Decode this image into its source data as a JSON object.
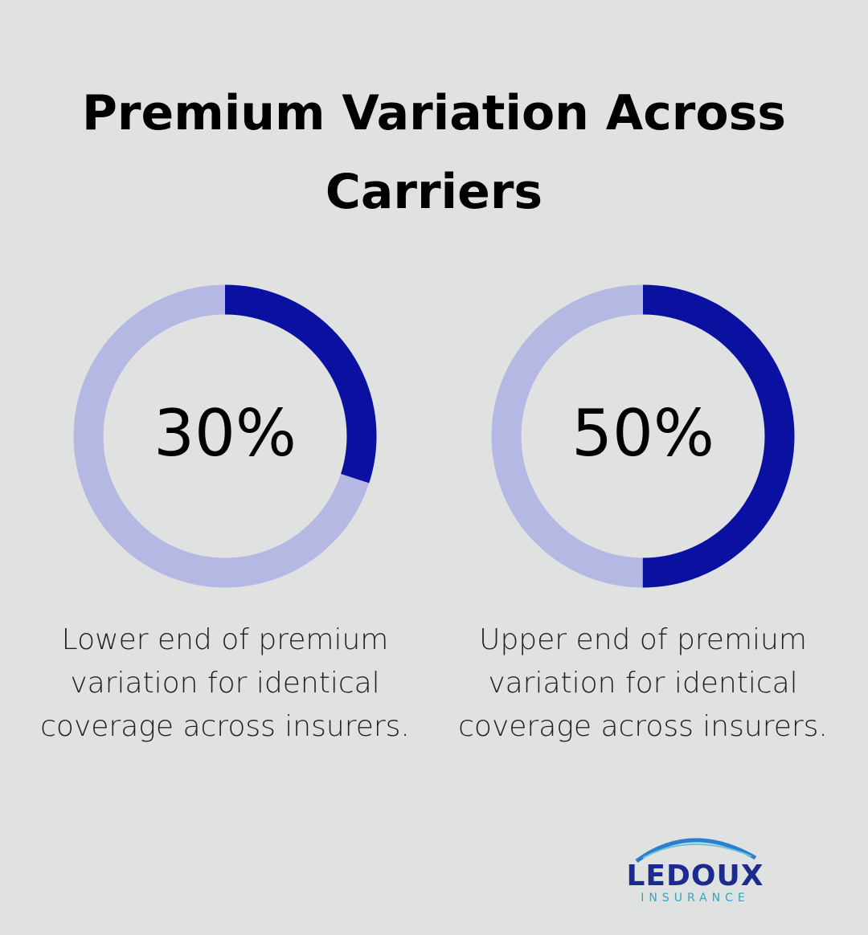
{
  "title": "Premium Variation Across Carriers",
  "chart_data": [
    {
      "type": "donut",
      "values": [
        30
      ],
      "value_labels": [
        "30%"
      ],
      "color": "#0a10a0",
      "track_color": "#b5b8e3",
      "caption": "Lower end of premium variation for identical coverage across insurers."
    },
    {
      "type": "donut",
      "values": [
        50
      ],
      "value_labels": [
        "50%"
      ],
      "color": "#0a10a0",
      "track_color": "#b5b8e3",
      "caption": "Upper end of premium variation for identical coverage across insurers."
    }
  ],
  "logo": {
    "name": "LEDOUX",
    "tagline": "INSURANCE"
  }
}
